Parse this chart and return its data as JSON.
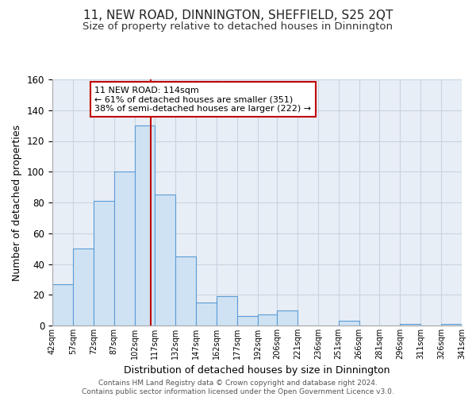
{
  "title": "11, NEW ROAD, DINNINGTON, SHEFFIELD, S25 2QT",
  "subtitle": "Size of property relative to detached houses in Dinnington",
  "xlabel": "Distribution of detached houses by size in Dinnington",
  "ylabel": "Number of detached properties",
  "bar_edges": [
    42,
    57,
    72,
    87,
    102,
    117,
    132,
    147,
    162,
    177,
    192,
    206,
    221,
    236,
    251,
    266,
    281,
    296,
    311,
    326,
    341
  ],
  "bar_heights": [
    27,
    50,
    81,
    100,
    130,
    85,
    45,
    15,
    19,
    6,
    7,
    10,
    0,
    0,
    3,
    0,
    0,
    1,
    0,
    1
  ],
  "bar_color": "#cfe2f3",
  "bar_edge_color": "#5b9bd5",
  "property_line_x": 114,
  "property_line_color": "#c00000",
  "annotation_line1": "11 NEW ROAD: 114sqm",
  "annotation_line2": "← 61% of detached houses are smaller (351)",
  "annotation_line3": "38% of semi-detached houses are larger (222) →",
  "annotation_box_color": "#ffffff",
  "annotation_box_edge_color": "#c00000",
  "ylim": [
    0,
    160
  ],
  "yticks": [
    0,
    20,
    40,
    60,
    80,
    100,
    120,
    140,
    160
  ],
  "tick_labels": [
    "42sqm",
    "57sqm",
    "72sqm",
    "87sqm",
    "102sqm",
    "117sqm",
    "132sqm",
    "147sqm",
    "162sqm",
    "177sqm",
    "192sqm",
    "206sqm",
    "221sqm",
    "236sqm",
    "251sqm",
    "266sqm",
    "281sqm",
    "296sqm",
    "311sqm",
    "326sqm",
    "341sqm"
  ],
  "grid_color": "#c8d4e0",
  "background_color": "#e8eef6",
  "footer_text": "Contains HM Land Registry data © Crown copyright and database right 2024.\nContains public sector information licensed under the Open Government Licence v3.0.",
  "title_fontsize": 11,
  "subtitle_fontsize": 9.5,
  "footer_fontsize": 6.5
}
